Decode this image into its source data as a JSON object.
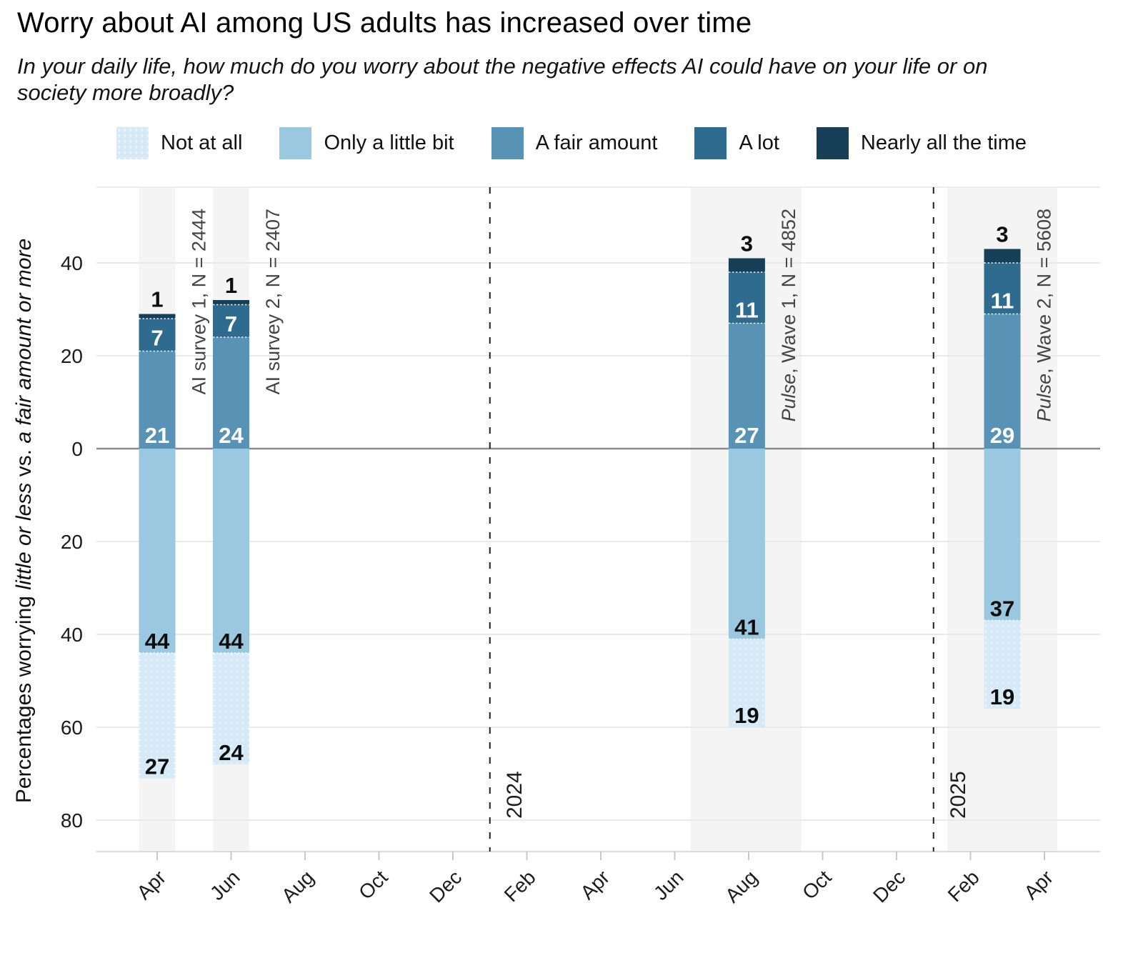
{
  "chart_data": {
    "type": "bar",
    "variant": "diverging-stacked-bar",
    "title": "Worry about AI among US adults has increased over time",
    "subtitle": "In your daily life, how much do you worry about the negative effects AI could have on your life or on society more broadly?",
    "ylabel": "Percentages worrying little or less vs. a fair amount or more",
    "ylabel_parts": [
      {
        "text": "Percentages worrying ",
        "italic": false
      },
      {
        "text": "little or less",
        "italic": true
      },
      {
        "text": " vs. ",
        "italic": false
      },
      {
        "text": "a fair amount or more",
        "italic": true
      }
    ],
    "xlabel": "",
    "ylim": [
      -87,
      56
    ],
    "grid": true,
    "legend_position": "top",
    "legend": [
      {
        "label": "Not at all",
        "color": "#d6e9f6",
        "textured": true
      },
      {
        "label": "Only a little bit",
        "color": "#9bc8e1",
        "textured": false
      },
      {
        "label": "A fair amount",
        "color": "#5892b4",
        "textured": false
      },
      {
        "label": "A lot",
        "color": "#2e6b8e",
        "textured": false
      },
      {
        "label": "Nearly all the time",
        "color": "#173f58",
        "textured": false
      }
    ],
    "stack_above_zero": [
      "A fair amount",
      "A lot",
      "Nearly all the time"
    ],
    "stack_below_zero": [
      "Only a little bit",
      "Not at all"
    ],
    "x_axis": {
      "tick_labels": [
        "Apr",
        "Jun",
        "Aug",
        "Oct",
        "Dec",
        "Feb",
        "Apr",
        "Jun",
        "Aug",
        "Oct",
        "Dec",
        "Feb",
        "Apr"
      ],
      "tick_month_offsets": [
        0,
        2,
        4,
        6,
        8,
        10,
        12,
        14,
        16,
        18,
        20,
        22,
        24
      ],
      "start": "Apr 2023",
      "end": "Apr 2025"
    },
    "y_ticks": [
      {
        "value": 40,
        "label": "40"
      },
      {
        "value": 20,
        "label": "20"
      },
      {
        "value": 0,
        "label": "0"
      },
      {
        "value": -20,
        "label": "20"
      },
      {
        "value": -40,
        "label": "40"
      },
      {
        "value": -60,
        "label": "60"
      },
      {
        "value": -80,
        "label": "80"
      }
    ],
    "year_markers": [
      {
        "label": "2024",
        "month_offset": 9
      },
      {
        "label": "2025",
        "month_offset": 21
      }
    ],
    "surveys": [
      {
        "annotation_italic": "",
        "annotation_rest": "AI survey 1, N = 2444",
        "n": 2444,
        "month_offset": 0,
        "band_months": [
          -0.49,
          0.49
        ],
        "values": {
          "Not at all": 27,
          "Only a little bit": 44,
          "A fair amount": 21,
          "A lot": 7,
          "Nearly all the time": 1
        }
      },
      {
        "annotation_italic": "",
        "annotation_rest": "AI survey 2, N = 2407",
        "n": 2407,
        "month_offset": 2,
        "band_months": [
          1.51,
          2.49
        ],
        "values": {
          "Not at all": 24,
          "Only a little bit": 44,
          "A fair amount": 24,
          "A lot": 7,
          "Nearly all the time": 1
        }
      },
      {
        "annotation_italic": "Pulse",
        "annotation_rest": ", Wave 1, N = 4852",
        "n": 4852,
        "month_offset": 15.95,
        "band_months": [
          14.43,
          17.43
        ],
        "values": {
          "Not at all": 19,
          "Only a little bit": 41,
          "A fair amount": 27,
          "A lot": 11,
          "Nearly all the time": 3
        }
      },
      {
        "annotation_italic": "Pulse",
        "annotation_rest": ", Wave 2, N = 5608",
        "n": 5608,
        "month_offset": 22.86,
        "band_months": [
          21.37,
          24.35
        ],
        "values": {
          "Not at all": 19,
          "Only a little bit": 37,
          "A fair amount": 29,
          "A lot": 11,
          "Nearly all the time": 3
        }
      }
    ],
    "style_colors": {
      "background": "#ffffff",
      "column_band": "#f4f4f4",
      "gridline": "#e9e9e9",
      "panel_top_border": "#ededed",
      "panel_bottom_border": "#dadada",
      "zero_line": "#8a8a8a",
      "year_line": "#1f1f1f",
      "tick_mark": "#c8c8c8",
      "axis_text": "#1c1c1c",
      "annotation_text": "#444444",
      "label_dark": "#0d0d0d",
      "label_light": "#ffffff"
    }
  }
}
